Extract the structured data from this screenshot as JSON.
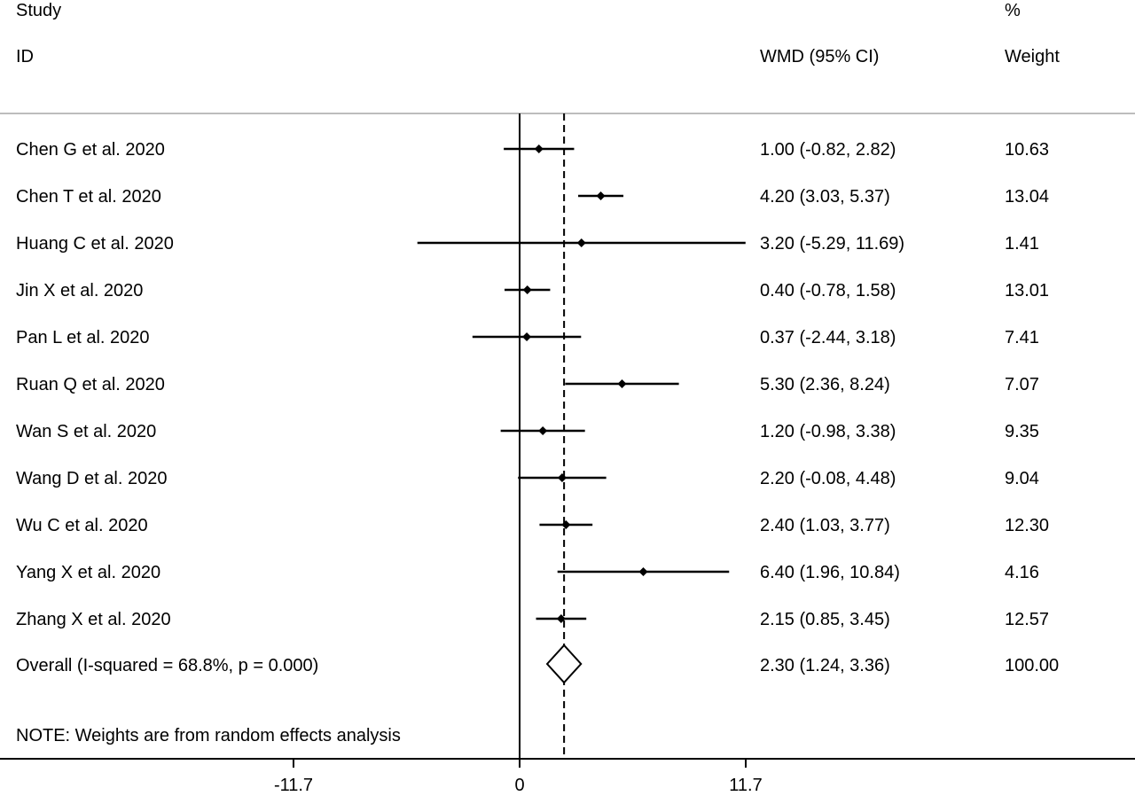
{
  "chart_data": {
    "type": "forest",
    "header": {
      "study_line1": "Study",
      "study_line2": "ID",
      "effect_label": "WMD (95% CI)",
      "weight_line1": "%",
      "weight_line2": "Weight"
    },
    "studies": [
      {
        "label": "Chen G et al. 2020",
        "estimate": 1.0,
        "lower": -0.82,
        "upper": 2.82,
        "ci_text": "1.00 (-0.82, 2.82)",
        "weight": "10.63"
      },
      {
        "label": "Chen T et al. 2020",
        "estimate": 4.2,
        "lower": 3.03,
        "upper": 5.37,
        "ci_text": "4.20 (3.03, 5.37)",
        "weight": "13.04"
      },
      {
        "label": "Huang C et al. 2020",
        "estimate": 3.2,
        "lower": -5.29,
        "upper": 11.69,
        "ci_text": "3.20 (-5.29, 11.69)",
        "weight": "1.41"
      },
      {
        "label": "Jin X et al. 2020",
        "estimate": 0.4,
        "lower": -0.78,
        "upper": 1.58,
        "ci_text": "0.40 (-0.78, 1.58)",
        "weight": "13.01"
      },
      {
        "label": "Pan L et al. 2020",
        "estimate": 0.37,
        "lower": -2.44,
        "upper": 3.18,
        "ci_text": "0.37 (-2.44, 3.18)",
        "weight": "7.41"
      },
      {
        "label": "Ruan Q et al. 2020",
        "estimate": 5.3,
        "lower": 2.36,
        "upper": 8.24,
        "ci_text": "5.30 (2.36, 8.24)",
        "weight": "7.07"
      },
      {
        "label": "Wan S et al. 2020",
        "estimate": 1.2,
        "lower": -0.98,
        "upper": 3.38,
        "ci_text": "1.20 (-0.98, 3.38)",
        "weight": "9.35"
      },
      {
        "label": "Wang D et al. 2020",
        "estimate": 2.2,
        "lower": -0.08,
        "upper": 4.48,
        "ci_text": "2.20 (-0.08, 4.48)",
        "weight": "9.04"
      },
      {
        "label": "Wu C et al. 2020",
        "estimate": 2.4,
        "lower": 1.03,
        "upper": 3.77,
        "ci_text": "2.40 (1.03, 3.77)",
        "weight": "12.30"
      },
      {
        "label": "Yang X et al. 2020",
        "estimate": 6.4,
        "lower": 1.96,
        "upper": 10.84,
        "ci_text": "6.40 (1.96, 10.84)",
        "weight": "4.16"
      },
      {
        "label": "Zhang X et al. 2020",
        "estimate": 2.15,
        "lower": 0.85,
        "upper": 3.45,
        "ci_text": "2.15 (0.85, 3.45)",
        "weight": "12.57"
      }
    ],
    "overall": {
      "label": "Overall  (I-squared = 68.8%, p = 0.000)",
      "estimate": 2.3,
      "lower": 1.24,
      "upper": 3.36,
      "ci_text": "2.30 (1.24, 3.36)",
      "weight": "100.00"
    },
    "note": "NOTE: Weights are from random effects analysis",
    "x_axis": {
      "ticks": [
        -11.7,
        0,
        11.7
      ],
      "tick_labels": [
        "-11.7",
        "0",
        "11.7"
      ],
      "range": [
        -11.7,
        11.7
      ]
    },
    "null_line": 0,
    "summary_line": 2.3
  }
}
